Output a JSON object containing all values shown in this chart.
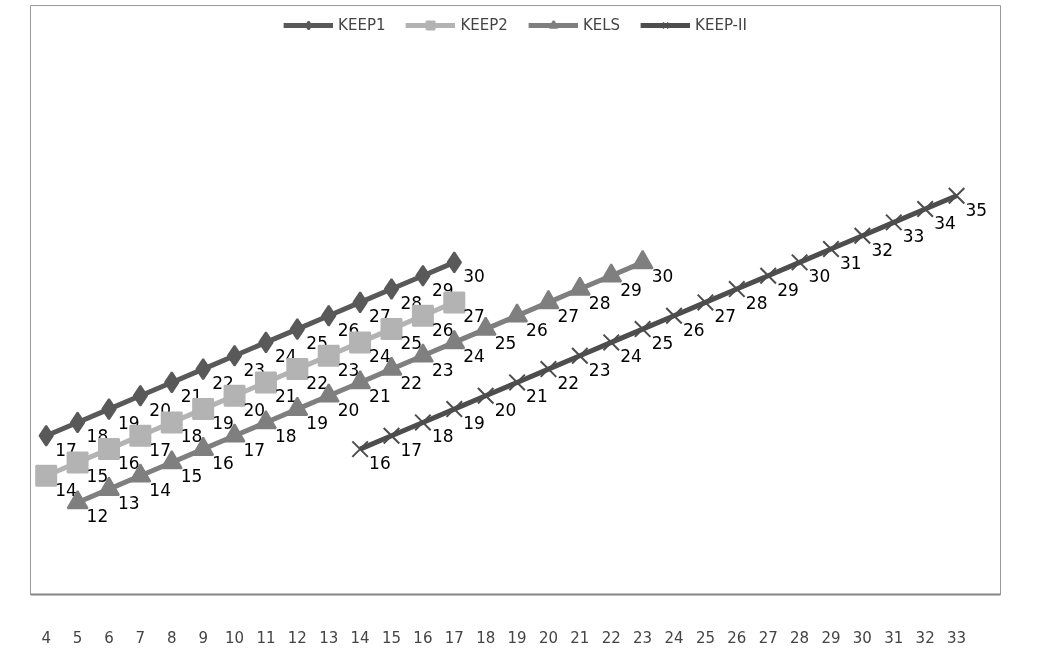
{
  "chart_data": {
    "type": "line",
    "categories": [
      "4",
      "5",
      "6",
      "7",
      "8",
      "9",
      "10",
      "11",
      "12",
      "13",
      "14",
      "15",
      "16",
      "17",
      "18",
      "19",
      "20",
      "21",
      "22",
      "23",
      "24",
      "25",
      "26",
      "27",
      "28",
      "29",
      "30",
      "31",
      "32",
      "33"
    ],
    "series": [
      {
        "name": "KEEP1",
        "color": "#595959",
        "marker": "diamond",
        "values": [
          17,
          18,
          19,
          20,
          21,
          22,
          23,
          24,
          25,
          26,
          27,
          28,
          29,
          30,
          null,
          null,
          null,
          null,
          null,
          null,
          null,
          null,
          null,
          null,
          null,
          null,
          null,
          null,
          null,
          null
        ]
      },
      {
        "name": "KEEP2",
        "color": "#b3b3b3",
        "marker": "square",
        "values": [
          14,
          15,
          16,
          17,
          18,
          19,
          20,
          21,
          22,
          23,
          24,
          25,
          26,
          27,
          null,
          null,
          null,
          null,
          null,
          null,
          null,
          null,
          null,
          null,
          null,
          null,
          null,
          null,
          null,
          null
        ]
      },
      {
        "name": "KELS",
        "color": "#7f7f7f",
        "marker": "triangle",
        "values": [
          null,
          12,
          13,
          14,
          15,
          16,
          17,
          18,
          19,
          20,
          21,
          22,
          23,
          24,
          25,
          26,
          27,
          28,
          29,
          30,
          null,
          null,
          null,
          null,
          null,
          null,
          null,
          null,
          null,
          null
        ]
      },
      {
        "name": "KEEP-II",
        "color": "#4d4d4d",
        "marker": "cross",
        "values": [
          null,
          null,
          null,
          null,
          null,
          null,
          null,
          null,
          null,
          null,
          16,
          17,
          18,
          19,
          20,
          21,
          22,
          23,
          24,
          25,
          26,
          27,
          28,
          29,
          30,
          31,
          32,
          33,
          34,
          35
        ]
      }
    ],
    "data_labels": true,
    "legend": "top",
    "grid": false,
    "tick_labels": "x"
  }
}
